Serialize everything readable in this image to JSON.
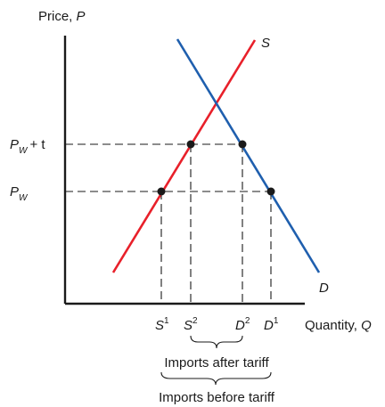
{
  "axes": {
    "y_label": "Price,",
    "y_symbol": "P",
    "x_label": "Quantity,",
    "x_symbol": "Q"
  },
  "curves": {
    "supply_label": "S",
    "demand_label": "D",
    "supply_color": "#e8202a",
    "demand_color": "#1f5fae"
  },
  "price_levels": {
    "tariff_price": {
      "main": "P",
      "sub": "W",
      "rest": "+ t"
    },
    "world_price": {
      "main": "P",
      "sub": "W"
    }
  },
  "quantity_ticks": [
    {
      "base": "S",
      "sup": "1"
    },
    {
      "base": "S",
      "sup": "2"
    },
    {
      "base": "D",
      "sup": "2"
    },
    {
      "base": "D",
      "sup": "1"
    }
  ],
  "annotations": {
    "imports_after": "Imports after tariff",
    "imports_before": "Imports before tariff"
  }
}
